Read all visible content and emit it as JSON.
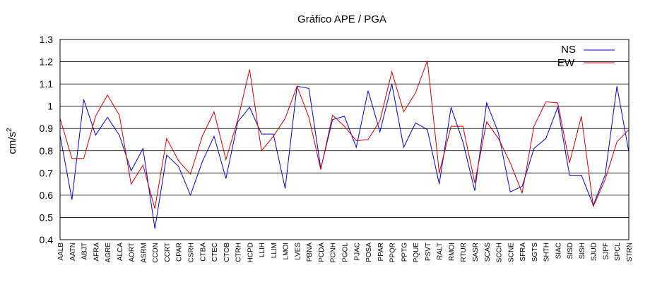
{
  "chart_data": {
    "type": "line",
    "title": "Gráfico  APE / PGA",
    "ylabel": "cm/s",
    "ylabel_sup": "2",
    "ylim": [
      0.4,
      1.3
    ],
    "yticks": [
      "0.4",
      "0.5",
      "0.6",
      "0.7",
      "0.8",
      "0.9",
      "1",
      "1.1",
      "1.2",
      "1.3"
    ],
    "grid": "horizontal",
    "legend_position": "top-right",
    "categories": [
      "AALB",
      "AATN",
      "ABJT",
      "AFRA",
      "AGRE",
      "ALCA",
      "AORT",
      "ASRM",
      "CCDN",
      "CCRT",
      "CPAR",
      "CSRH",
      "CTBA",
      "CTEC",
      "CTOB",
      "CTRH",
      "HCPD",
      "LLIH",
      "LLIM",
      "LMOI",
      "LVES",
      "PBNA",
      "PCDA",
      "PCNH",
      "PGOL",
      "PJAC",
      "POSA",
      "PPAR",
      "PPQR",
      "PPTG",
      "PQUE",
      "PSVT",
      "RALT",
      "RMOI",
      "RTUR",
      "SASR",
      "SCAS",
      "SCCH",
      "SCNE",
      "SFRA",
      "SGTS",
      "SHTH",
      "SIAC",
      "SISD",
      "SISH",
      "SJUD",
      "SJPF",
      "SPCL",
      "STRN"
    ],
    "series": [
      {
        "name": "NS",
        "color": "#0000cc",
        "values": [
          0.87,
          0.58,
          1.03,
          0.87,
          0.95,
          0.87,
          0.71,
          0.81,
          0.45,
          0.78,
          0.73,
          0.6,
          0.75,
          0.865,
          0.675,
          0.93,
          0.995,
          0.875,
          0.875,
          0.63,
          1.09,
          1.08,
          0.72,
          0.94,
          0.955,
          0.815,
          1.07,
          0.885,
          1.1,
          0.815,
          0.925,
          0.895,
          0.65,
          0.995,
          0.84,
          0.62,
          1.015,
          0.88,
          0.615,
          0.64,
          0.81,
          0.855,
          0.995,
          0.69,
          0.69,
          0.555,
          0.69,
          1.09,
          0.795
        ]
      },
      {
        "name": "EW",
        "color": "#cc0000",
        "values": [
          0.945,
          0.765,
          0.765,
          0.955,
          1.05,
          0.96,
          0.65,
          0.735,
          0.54,
          0.855,
          0.755,
          0.695,
          0.865,
          0.975,
          0.76,
          0.94,
          1.165,
          0.8,
          0.865,
          0.945,
          1.09,
          0.95,
          0.715,
          0.96,
          0.91,
          0.845,
          0.85,
          0.935,
          1.155,
          0.975,
          1.06,
          1.205,
          0.7,
          0.91,
          0.91,
          0.655,
          0.93,
          0.855,
          0.745,
          0.61,
          0.91,
          1.02,
          1.015,
          0.745,
          0.955,
          0.55,
          0.67,
          0.84,
          0.895
        ]
      }
    ]
  }
}
